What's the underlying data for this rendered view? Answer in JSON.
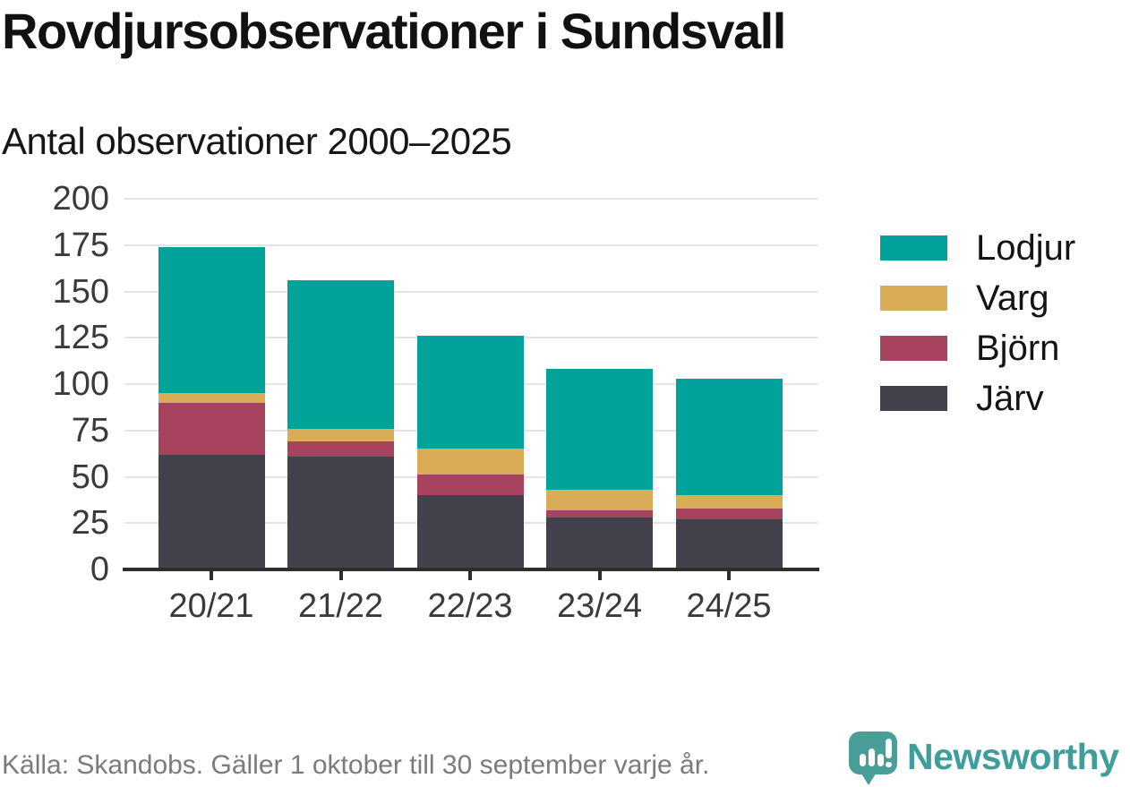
{
  "title": "Rovdjursobservationer i Sundsvall",
  "subtitle": "Antal observationer 2000–2025",
  "footer": {
    "source": "Källa: Skandobs. Gäller 1 oktober till 30 september varje år.",
    "brand": "Newsworthy"
  },
  "colors": {
    "lodjur": "#00A29A",
    "varg": "#D9AC57",
    "bjorn": "#A8435F",
    "jarv": "#44404C",
    "grid": "#E4E4E4",
    "axis": "#2D2D2D",
    "tick_text": "#3A3A3A",
    "footer_text": "#7B7B7B",
    "brand_teal": "#3F9E99"
  },
  "chart_data": {
    "type": "bar",
    "stacked": true,
    "title": "Rovdjursobservationer i Sundsvall",
    "subtitle": "Antal observationer 2000–2025",
    "categories": [
      "20/21",
      "21/22",
      "22/23",
      "23/24",
      "24/25"
    ],
    "series": [
      {
        "name": "Järv",
        "color": "#44404C",
        "values": [
          62,
          61,
          40,
          28,
          27
        ]
      },
      {
        "name": "Björn",
        "color": "#A8435F",
        "values": [
          28,
          8,
          11,
          4,
          6
        ]
      },
      {
        "name": "Varg",
        "color": "#D9AC57",
        "values": [
          5,
          7,
          14,
          11,
          7
        ]
      },
      {
        "name": "Lodjur",
        "color": "#00A29A",
        "values": [
          79,
          80,
          61,
          65,
          63
        ]
      }
    ],
    "totals": [
      174,
      156,
      126,
      108,
      103
    ],
    "legend_order": [
      "Lodjur",
      "Varg",
      "Björn",
      "Järv"
    ],
    "ylim": [
      0,
      200
    ],
    "yticks": [
      0,
      25,
      50,
      75,
      100,
      125,
      150,
      175,
      200
    ],
    "grid": true,
    "legend_position": "right"
  }
}
